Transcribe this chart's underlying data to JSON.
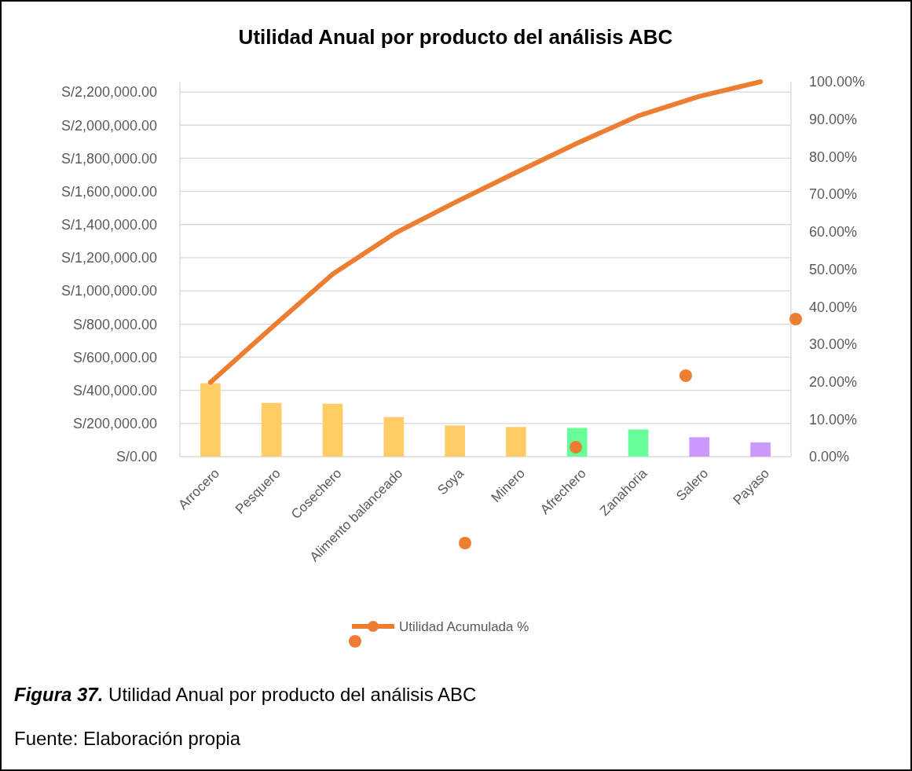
{
  "chart_data": {
    "type": "bar",
    "title": "Utilidad Anual por producto del análisis ABC",
    "categories": [
      "Arrocero",
      "Pesquero",
      "Cosechero",
      "Alimento balanceado",
      "Soya",
      "Minero",
      "Afrechero",
      "Zanahoria",
      "Salero",
      "Payaso"
    ],
    "series": [
      {
        "colors": [
          "#ffcc66",
          "#ffcc66",
          "#ffcc66",
          "#ffcc66",
          "#ffcc66",
          "#ffcc66",
          "#66ff99",
          "#66ff99",
          "#cc99ff",
          "#cc99ff"
        ],
        "values": [
          443000,
          324000,
          319000,
          239000,
          188000,
          179000,
          173000,
          164000,
          117000,
          86000
        ]
      },
      {
        "type": "line",
        "name": "Utilidad Acumulada %",
        "color": "#ed7d31",
        "axis": "y2",
        "values": [
          19.8,
          34.4,
          48.7,
          59.4,
          67.8,
          75.8,
          83.6,
          90.9,
          96.1,
          100
        ]
      }
    ],
    "ylim": [
      0,
      2262000
    ],
    "yticks": [
      {
        "value": 0,
        "label": "S/0.00"
      },
      {
        "value": 200000,
        "label": "S/200,000.00"
      },
      {
        "value": 400000,
        "label": "S/400,000.00"
      },
      {
        "value": 600000,
        "label": "S/600,000.00"
      },
      {
        "value": 800000,
        "label": "S/800,000.00"
      },
      {
        "value": 1000000,
        "label": "S/1,000,000.00"
      },
      {
        "value": 1200000,
        "label": "S/1,200,000.00"
      },
      {
        "value": 1400000,
        "label": "S/1,400,000.00"
      },
      {
        "value": 1600000,
        "label": "S/1,600,000.00"
      },
      {
        "value": 1800000,
        "label": "S/1,800,000.00"
      },
      {
        "value": 2000000,
        "label": "S/2,000,000.00"
      },
      {
        "value": 2200000,
        "label": "S/2,200,000.00"
      }
    ],
    "y2lim": [
      0,
      100
    ],
    "y2ticks": [
      {
        "value": 0,
        "label": "0.00%"
      },
      {
        "value": 10,
        "label": "10.00%"
      },
      {
        "value": 20,
        "label": "20.00%"
      },
      {
        "value": 30,
        "label": "30.00%"
      },
      {
        "value": 40,
        "label": "40.00%"
      },
      {
        "value": 50,
        "label": "50.00%"
      },
      {
        "value": 60,
        "label": "60.00%"
      },
      {
        "value": 70,
        "label": "70.00%"
      },
      {
        "value": 80,
        "label": "80.00%"
      },
      {
        "value": 90,
        "label": "90.00%"
      },
      {
        "value": 100,
        "label": "100.00%"
      }
    ],
    "grid": "y",
    "legend": "bottom",
    "annotations": [
      "Figura 37. Utilidad Anual por producto del análisis ABC",
      "Fuente: Elaboración propia"
    ]
  }
}
